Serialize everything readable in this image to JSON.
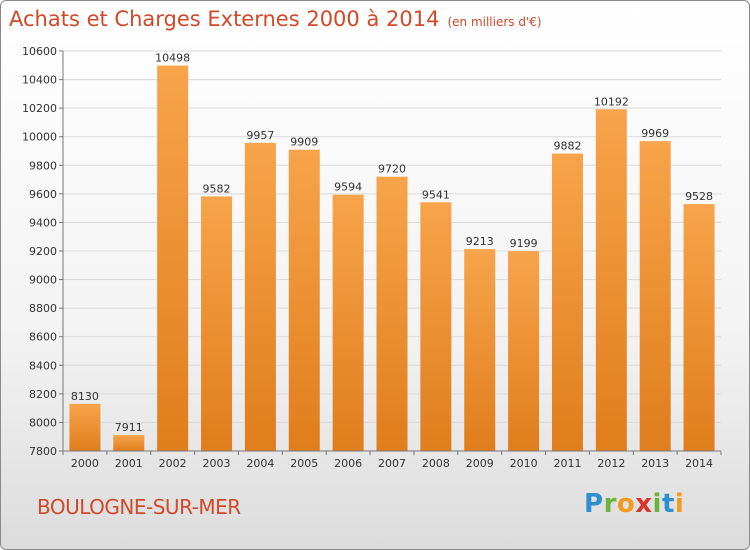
{
  "title": "Achats et Charges Externes 2000 à 2014",
  "subtitle": "(en milliers d'€)",
  "city": "BOULOGNE-SUR-MER",
  "logo": {
    "p": "P",
    "r": "r",
    "o": "o",
    "x": "x",
    "i": "i",
    "t": "t",
    "i2": "i"
  },
  "colors": {
    "title": "#d2492a",
    "bar_light": "#f7a44a",
    "bar_dark": "#e07d1c",
    "grid": "#d9d9d9"
  },
  "chart_data": {
    "type": "bar",
    "title": "Achats et Charges Externes 2000 à 2014",
    "subtitle": "(en milliers d'€)",
    "xlabel": "",
    "ylabel": "",
    "ylim": [
      7800,
      10600
    ],
    "yticks": [
      7800,
      8000,
      8200,
      8400,
      8600,
      8800,
      9000,
      9200,
      9400,
      9600,
      9800,
      10000,
      10200,
      10400,
      10600
    ],
    "categories": [
      "2000",
      "2001",
      "2002",
      "2003",
      "2004",
      "2005",
      "2006",
      "2007",
      "2008",
      "2009",
      "2010",
      "2011",
      "2012",
      "2013",
      "2014"
    ],
    "values": [
      8130,
      7911,
      10498,
      9582,
      9957,
      9909,
      9594,
      9720,
      9541,
      9213,
      9199,
      9882,
      10192,
      9969,
      9528
    ],
    "grid": true
  }
}
